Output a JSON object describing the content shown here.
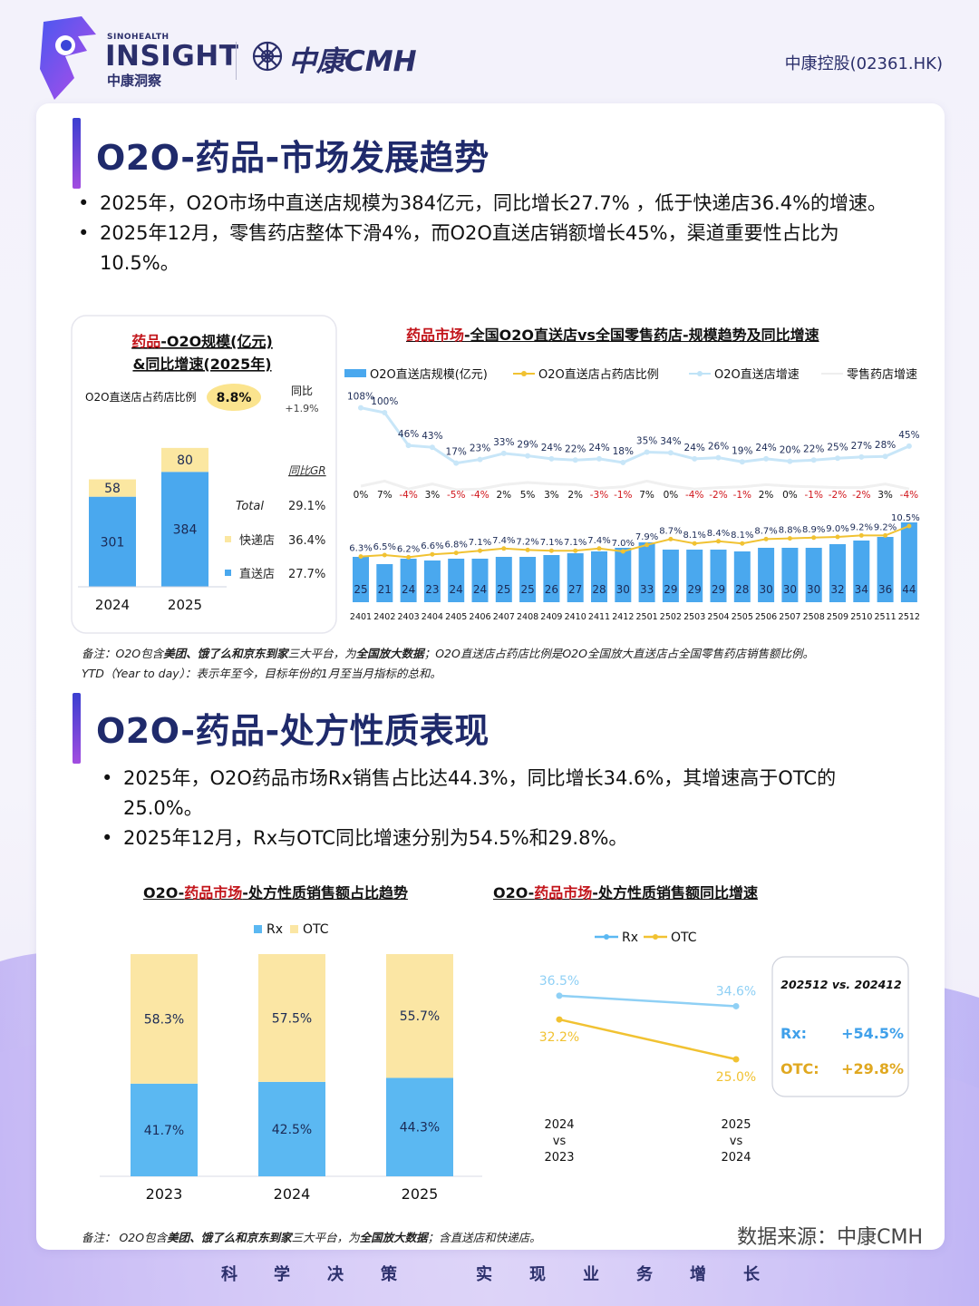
{
  "header": {
    "brand_small": "SINOHEALTH",
    "brand_big": "INSIGHT",
    "brand_cn": "中康洞察",
    "partner": "中康CMH",
    "ticker": "中康控股(02361.HK)"
  },
  "section1": {
    "title": "O2O-药品-市场发展趋势",
    "bullets": [
      "2025年，O2O市场中直送店规模为384亿元，同比增长27.7% ，低于快递店36.4%的增速。",
      "2025年12月，零售药店整体下滑4%，而O2O直送店销额增长45%，渠道重要性占比为10.5%。"
    ]
  },
  "section2": {
    "title": "O2O-药品-处方性质表现",
    "bullets": [
      "2025年，O2O药品市场Rx销售占比达44.3%，同比增长34.6%，其增速高于OTC的25.0%。",
      "2025年12月，Rx与OTC同比增速分别为54.5%和29.8%。"
    ]
  },
  "notes": {
    "note1_line1_a": "备注：O2O包含",
    "note1_line1_b": "美团、饿了么和京东到家",
    "note1_line1_c": "三大平台，为",
    "note1_line1_d": "全国放大数据",
    "note1_line1_e": "；O2O直送店占药店比例是O2O全国放大直送店占全国零售药店销售额比例。",
    "note1_line2": "YTD（Year to day）：表示年至今，目标年份的1月至当月指标的总和。",
    "note2_a": "备注：  O2O包含",
    "note2_b": "美团、饿了么和京东到家",
    "note2_c": "三大平台，为",
    "note2_d": "全国放大数据",
    "note2_e": "；含直送店和快递店。",
    "source": "数据来源：中康CMH"
  },
  "slogan": [
    "科",
    "学",
    "决",
    "策",
    "实",
    "现",
    "业",
    "务",
    "增",
    "长"
  ],
  "chart_data": [
    {
      "type": "bar",
      "title_red": "药品",
      "title_rest": "-O2O规模(亿元)",
      "title_line2": "&同比增速(2025年)",
      "categories": [
        "2024",
        "2025"
      ],
      "series": [
        {
          "name": "直送店",
          "values": [
            301,
            384
          ],
          "color": "#4aa8ee"
        },
        {
          "name": "快递店",
          "values": [
            58,
            80
          ],
          "color": "#fbe7a1"
        }
      ],
      "ratio_label": "O2O直送店占药店比例",
      "ratio_value": "8.8%",
      "yoy_label": "同比",
      "yoy_value": "+1.9%",
      "gr_header": "同比GR",
      "gr_rows": [
        {
          "label": "Total",
          "value": "29.1%"
        },
        {
          "label": "快递店",
          "value": "36.4%"
        },
        {
          "label": "直送店",
          "value": "27.7%"
        }
      ]
    },
    {
      "type": "bar+line",
      "title_red": "药品市场",
      "title_rest": "-全国O2O直送店vs全国零售药店-规模趋势及同比增速",
      "legend": [
        "O2O直送店规模(亿元)",
        "O2O直送店占药店比例",
        "O2O直送店增速",
        "零售药店增速"
      ],
      "categories": [
        "2401",
        "2402",
        "2403",
        "2404",
        "2405",
        "2406",
        "2407",
        "2408",
        "2409",
        "2410",
        "2411",
        "2412",
        "2501",
        "2502",
        "2503",
        "2504",
        "2505",
        "2506",
        "2507",
        "2508",
        "2509",
        "2510",
        "2511",
        "2512"
      ],
      "bar_values": [
        25,
        21,
        24,
        23,
        24,
        24,
        25,
        25,
        26,
        27,
        28,
        30,
        33,
        29,
        29,
        29,
        28,
        30,
        30,
        30,
        32,
        34,
        36,
        44
      ],
      "share_labels": [
        "6.3%",
        "6.5%",
        "6.2%",
        "6.6%",
        "6.8%",
        "7.1%",
        "7.4%",
        "7.2%",
        "7.1%",
        "7.1%",
        "7.4%",
        "7.0%",
        "7.9%",
        "8.7%",
        "8.1%",
        "8.4%",
        "8.1%",
        "8.7%",
        "8.8%",
        "8.9%",
        "9.0%",
        "9.2%",
        "9.2%",
        "10.5%"
      ],
      "o2o_growth_labels": [
        "108%",
        "100%",
        "46%",
        "43%",
        "17%",
        "23%",
        "33%",
        "29%",
        "24%",
        "22%",
        "24%",
        "18%",
        "35%",
        "34%",
        "24%",
        "26%",
        "19%",
        "24%",
        "20%",
        "22%",
        "25%",
        "27%",
        "28%",
        "45%"
      ],
      "o2o_growth": [
        108,
        100,
        46,
        43,
        17,
        23,
        33,
        29,
        24,
        22,
        24,
        18,
        35,
        34,
        24,
        26,
        19,
        24,
        20,
        22,
        25,
        27,
        28,
        45
      ],
      "retail_growth_labels": [
        "0%",
        "7%",
        "-4%",
        "3%",
        "-5%",
        "-4%",
        "2%",
        "5%",
        "3%",
        "2%",
        "-3%",
        "-1%",
        "7%",
        "0%",
        "-4%",
        "-2%",
        "-1%",
        "2%",
        "0%",
        "-1%",
        "-2%",
        "-2%",
        "3%",
        "-4%"
      ],
      "retail_growth": [
        0,
        7,
        -4,
        3,
        -5,
        -4,
        2,
        5,
        3,
        2,
        -3,
        -1,
        7,
        0,
        -4,
        -2,
        -1,
        2,
        0,
        -1,
        -2,
        -2,
        3,
        -4
      ]
    },
    {
      "type": "stacked-bar",
      "title_a": "O2O-",
      "title_red": "药品市场",
      "title_rest": "-处方性质销售额占比趋势",
      "categories": [
        "2023",
        "2024",
        "2025"
      ],
      "series": [
        {
          "name": "Rx",
          "values": [
            41.7,
            42.5,
            44.3
          ],
          "labels": [
            "41.7%",
            "42.5%",
            "44.3%"
          ],
          "color": "#5bb8f2"
        },
        {
          "name": "OTC",
          "values": [
            58.3,
            57.5,
            55.7
          ],
          "labels": [
            "58.3%",
            "57.5%",
            "55.7%"
          ],
          "color": "#fbe6a4"
        }
      ]
    },
    {
      "type": "line",
      "title_a": "O2O-",
      "title_red": "药品市场",
      "title_rest": "-处方性质销售额同比增速",
      "categories": [
        [
          "2024",
          "vs",
          "2023"
        ],
        [
          "2025",
          "vs",
          "2024"
        ]
      ],
      "series": [
        {
          "name": "Rx",
          "values": [
            36.5,
            34.6
          ],
          "labels": [
            "36.5%",
            "34.6%"
          ],
          "color": "#8fd0f5"
        },
        {
          "name": "OTC",
          "values": [
            32.2,
            25.0
          ],
          "labels": [
            "32.2%",
            "25.0%"
          ],
          "color": "#f1c232"
        }
      ],
      "box_title": "202512 vs. 202412",
      "box_rows": [
        {
          "label": "Rx:",
          "value": "+54.5%",
          "color": "#3fa0ea"
        },
        {
          "label": "OTC:",
          "value": "+29.8%",
          "color": "#e0a820"
        }
      ]
    }
  ]
}
